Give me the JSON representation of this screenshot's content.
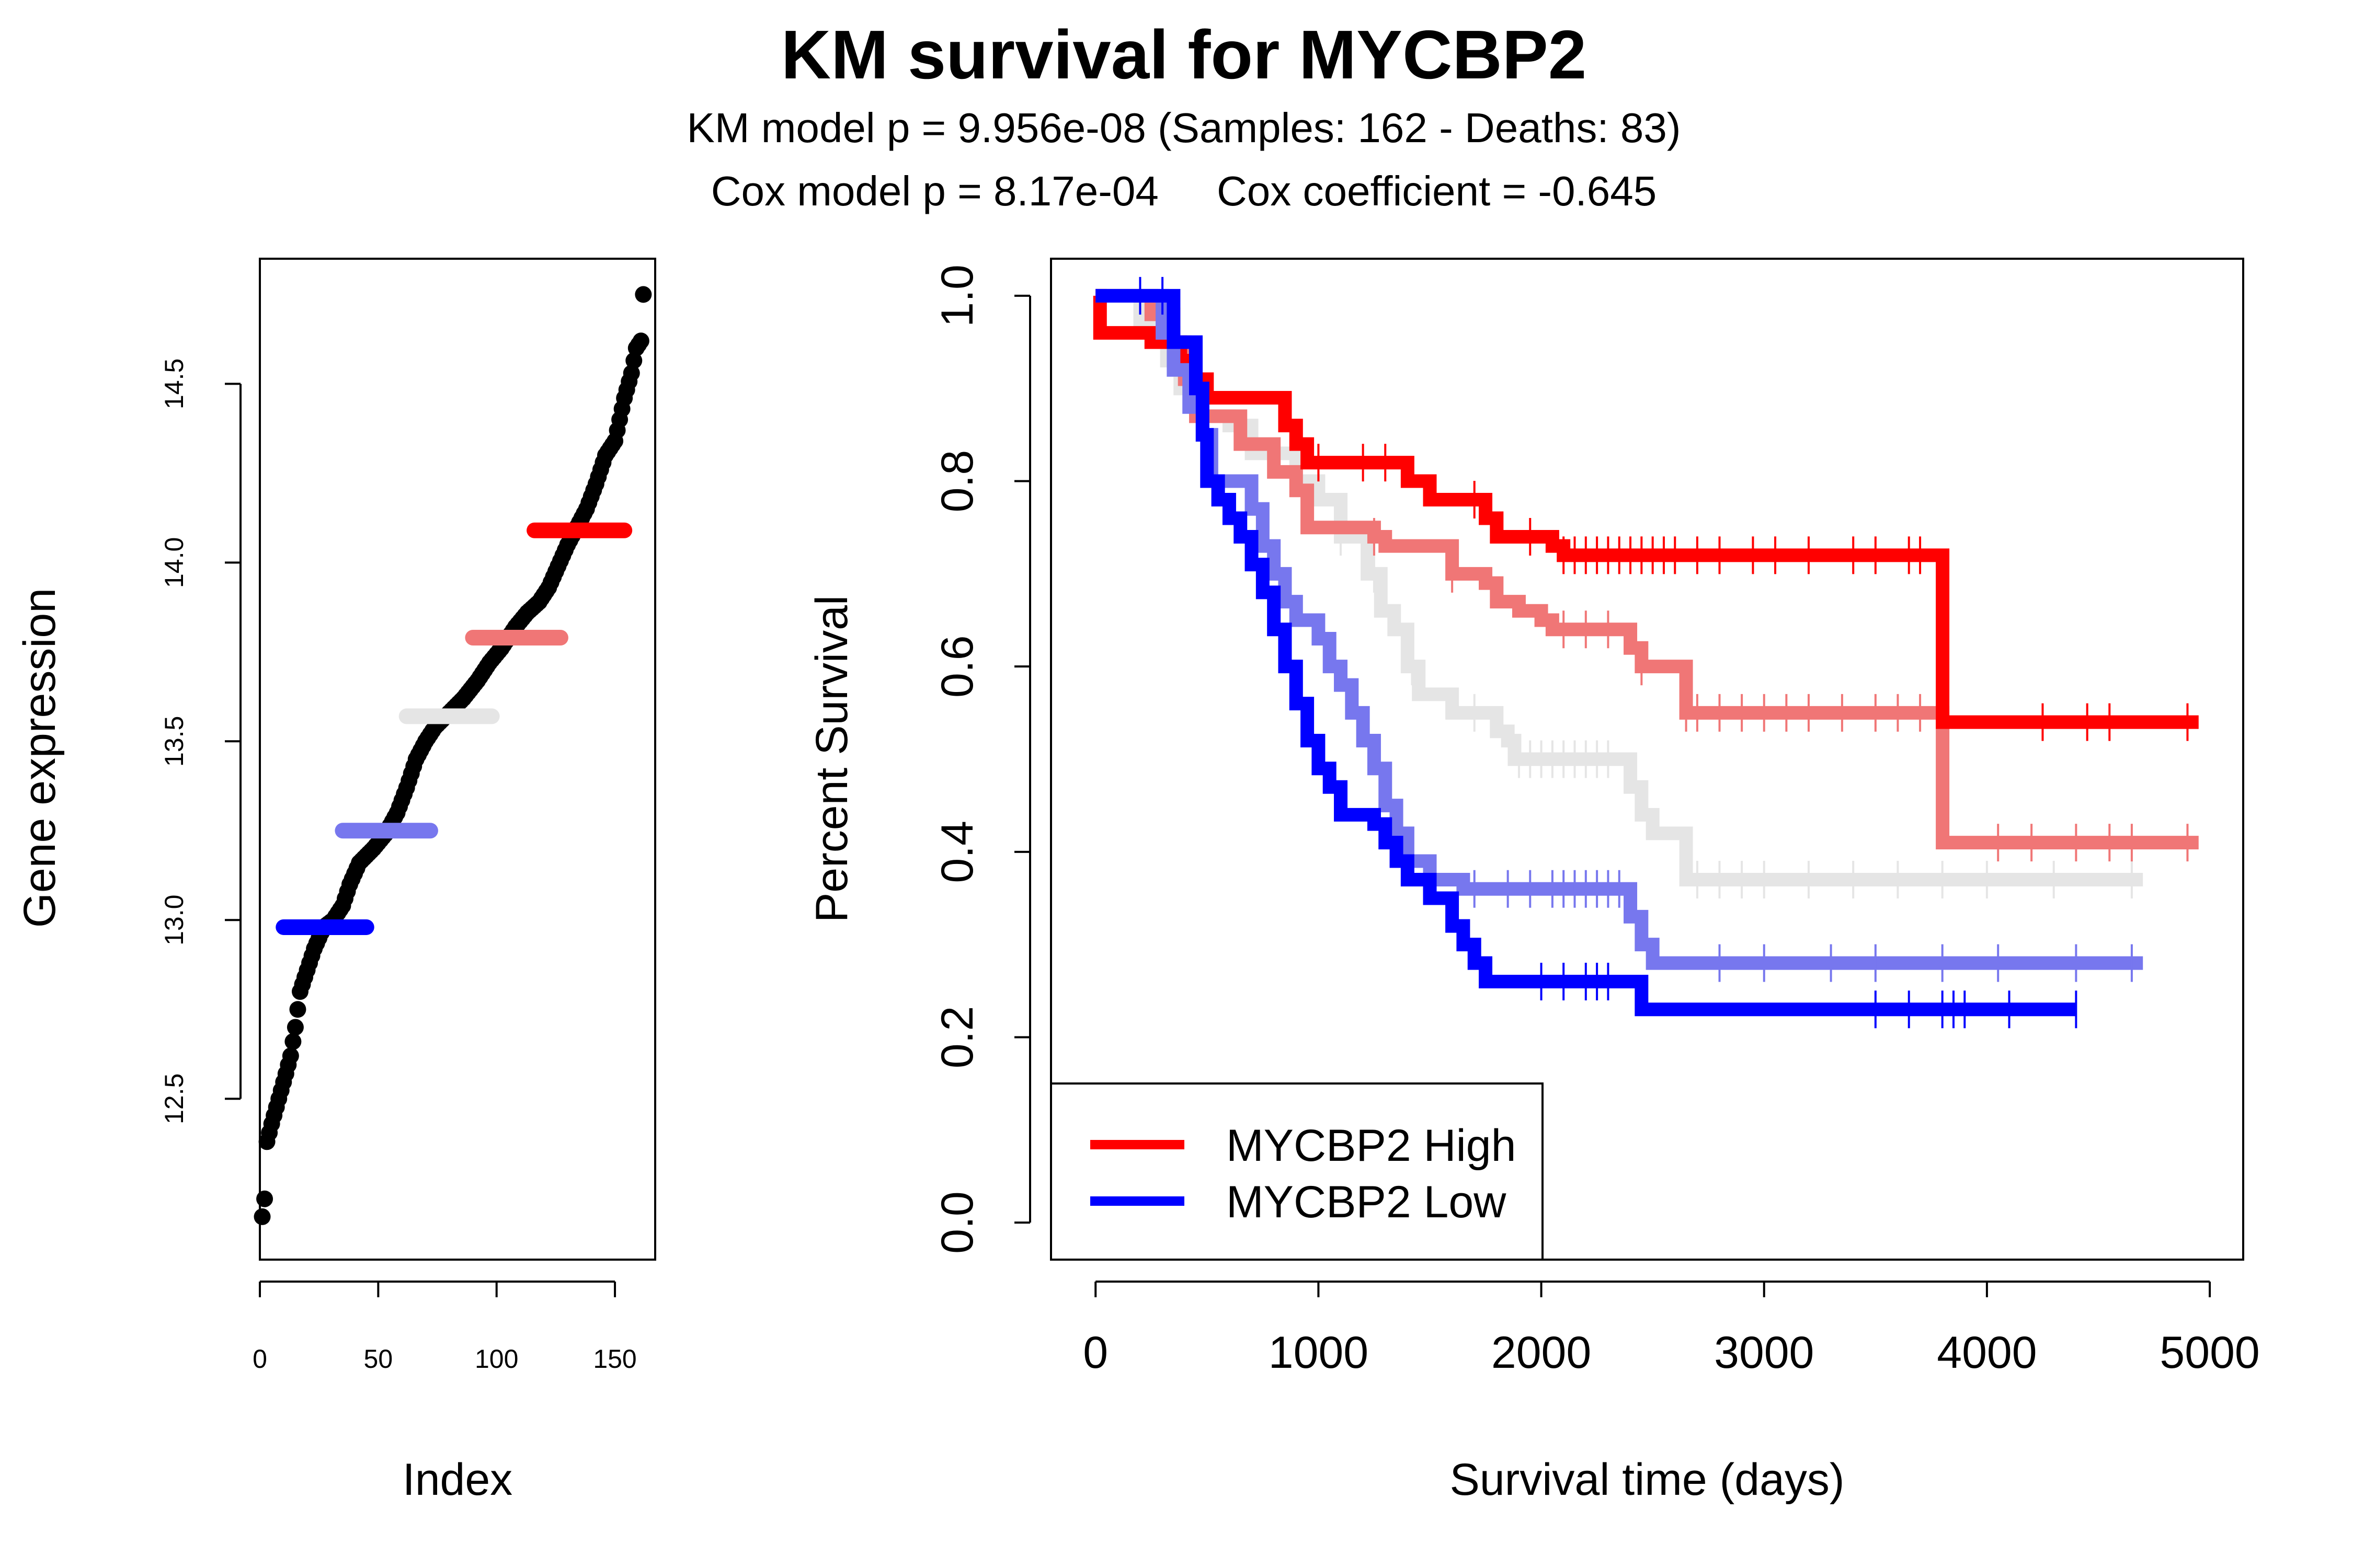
{
  "title": "KM survival for MYCBP2",
  "subtitle_line1": "KM model p = 9.956e-08 (Samples: 162 - Deaths: 83)",
  "subtitle_line2": "Cox model p = 8.17e-04     Cox coefficient = -0.645",
  "chart_data": [
    {
      "type": "scatter",
      "xlabel": "Index",
      "ylabel": "Gene expression",
      "xlim": [
        0,
        167
      ],
      "ylim": [
        12.05,
        14.85
      ],
      "x_ticks": [
        0,
        50,
        100,
        150
      ],
      "y_ticks": [
        12.5,
        13.0,
        13.5,
        14.0,
        14.5
      ],
      "grid": false,
      "n_points": 162,
      "value_curve": [
        [
          1,
          12.17
        ],
        [
          2,
          12.22
        ],
        [
          3,
          12.38
        ],
        [
          5,
          12.43
        ],
        [
          8,
          12.5
        ],
        [
          11,
          12.57
        ],
        [
          13,
          12.62
        ],
        [
          15,
          12.7
        ],
        [
          17,
          12.8
        ],
        [
          20,
          12.86
        ],
        [
          23,
          12.92
        ],
        [
          27,
          12.98
        ],
        [
          31,
          13.0
        ],
        [
          35,
          13.04
        ],
        [
          38,
          13.1
        ],
        [
          42,
          13.16
        ],
        [
          48,
          13.2
        ],
        [
          53,
          13.24
        ],
        [
          58,
          13.3
        ],
        [
          62,
          13.37
        ],
        [
          66,
          13.45
        ],
        [
          70,
          13.5
        ],
        [
          74,
          13.54
        ],
        [
          80,
          13.58
        ],
        [
          86,
          13.62
        ],
        [
          92,
          13.67
        ],
        [
          97,
          13.72
        ],
        [
          102,
          13.76
        ],
        [
          108,
          13.82
        ],
        [
          113,
          13.86
        ],
        [
          118,
          13.89
        ],
        [
          122,
          13.93
        ],
        [
          126,
          13.99
        ],
        [
          130,
          14.05
        ],
        [
          134,
          14.1
        ],
        [
          138,
          14.15
        ],
        [
          142,
          14.22
        ],
        [
          146,
          14.3
        ],
        [
          150,
          14.34
        ],
        [
          154,
          14.46
        ],
        [
          157,
          14.53
        ],
        [
          159,
          14.6
        ],
        [
          161,
          14.62
        ],
        [
          162,
          14.75
        ]
      ],
      "group_markers": [
        {
          "color": "#0000ff",
          "x_start": 10,
          "x_end": 45,
          "value": 12.98
        },
        {
          "color": "#7777ee",
          "x_start": 35,
          "x_end": 72,
          "value": 13.25
        },
        {
          "color": "#e5e5e5",
          "x_start": 62,
          "x_end": 98,
          "value": 13.57
        },
        {
          "color": "#f07676",
          "x_start": 90,
          "x_end": 127,
          "value": 13.79
        },
        {
          "color": "#ff0000",
          "x_start": 116,
          "x_end": 154,
          "value": 14.09
        }
      ]
    },
    {
      "type": "line",
      "subtype": "kaplan-meier",
      "xlabel": "Survival time (days)",
      "ylabel": "Percent Survival",
      "xlim": [
        -200,
        5150
      ],
      "ylim": [
        -0.04,
        1.04
      ],
      "x_ticks": [
        0,
        1000,
        2000,
        3000,
        4000,
        5000
      ],
      "y_ticks": [
        0.0,
        0.2,
        0.4,
        0.6,
        0.8,
        1.0
      ],
      "grid": false,
      "legend": {
        "position": "bottom-left",
        "entries": [
          {
            "label": "MYCBP2 High",
            "color": "#ff0000"
          },
          {
            "label": "MYCBP2 Low",
            "color": "#0000ff"
          }
        ]
      },
      "series": [
        {
          "color": "#e5e5e5",
          "steps": [
            [
              0,
              1.0
            ],
            [
              200,
              0.97
            ],
            [
              320,
              0.93
            ],
            [
              380,
              0.9
            ],
            [
              450,
              0.87
            ],
            [
              600,
              0.86
            ],
            [
              700,
              0.83
            ],
            [
              900,
              0.8
            ],
            [
              1000,
              0.78
            ],
            [
              1100,
              0.74
            ],
            [
              1220,
              0.7
            ],
            [
              1280,
              0.66
            ],
            [
              1340,
              0.64
            ],
            [
              1400,
              0.6
            ],
            [
              1450,
              0.57
            ],
            [
              1600,
              0.55
            ],
            [
              1800,
              0.53
            ],
            [
              1850,
              0.52
            ],
            [
              1880,
              0.5
            ],
            [
              2400,
              0.47
            ],
            [
              2450,
              0.44
            ],
            [
              2500,
              0.42
            ],
            [
              2650,
              0.37
            ],
            [
              4700,
              0.37
            ]
          ],
          "censor_days": [
            1100,
            1250,
            1420,
            1700,
            1900,
            1950,
            2000,
            2050,
            2100,
            2150,
            2200,
            2250,
            2300,
            2700,
            2800,
            2900,
            3000,
            3200,
            3400,
            3600,
            3800,
            4000,
            4300,
            4650
          ]
        },
        {
          "color": "#f07676",
          "steps": [
            [
              0,
              1.0
            ],
            [
              250,
              0.98
            ],
            [
              350,
              0.95
            ],
            [
              400,
              0.91
            ],
            [
              450,
              0.87
            ],
            [
              650,
              0.84
            ],
            [
              800,
              0.81
            ],
            [
              900,
              0.79
            ],
            [
              950,
              0.75
            ],
            [
              1250,
              0.74
            ],
            [
              1300,
              0.73
            ],
            [
              1600,
              0.7
            ],
            [
              1750,
              0.69
            ],
            [
              1800,
              0.67
            ],
            [
              1900,
              0.66
            ],
            [
              2000,
              0.65
            ],
            [
              2050,
              0.64
            ],
            [
              2400,
              0.62
            ],
            [
              2450,
              0.6
            ],
            [
              2650,
              0.55
            ],
            [
              3800,
              0.55
            ],
            [
              3801,
              0.41
            ],
            [
              4950,
              0.41
            ]
          ],
          "censor_days": [
            1250,
            1600,
            2100,
            2200,
            2300,
            2450,
            2650,
            2700,
            2800,
            2900,
            3000,
            3100,
            3200,
            3350,
            3500,
            3600,
            3700,
            4050,
            4200,
            4400,
            4550,
            4650,
            4900
          ]
        },
        {
          "color": "#ff0000",
          "steps": [
            [
              0,
              1.0
            ],
            [
              20,
              0.96
            ],
            [
              250,
              0.95
            ],
            [
              380,
              0.93
            ],
            [
              450,
              0.91
            ],
            [
              500,
              0.89
            ],
            [
              850,
              0.86
            ],
            [
              900,
              0.84
            ],
            [
              950,
              0.82
            ],
            [
              1400,
              0.8
            ],
            [
              1500,
              0.78
            ],
            [
              1750,
              0.76
            ],
            [
              1800,
              0.74
            ],
            [
              2050,
              0.73
            ],
            [
              2100,
              0.72
            ],
            [
              3800,
              0.72
            ],
            [
              3801,
              0.54
            ],
            [
              4950,
              0.54
            ]
          ],
          "censor_days": [
            1000,
            1200,
            1300,
            1700,
            1950,
            2100,
            2150,
            2200,
            2250,
            2300,
            2350,
            2400,
            2450,
            2500,
            2550,
            2600,
            2700,
            2800,
            2950,
            3050,
            3200,
            3400,
            3500,
            3650,
            3700,
            4250,
            4450,
            4550,
            4900
          ]
        },
        {
          "color": "#7777ee",
          "steps": [
            [
              0,
              1.0
            ],
            [
              300,
              0.96
            ],
            [
              350,
              0.92
            ],
            [
              420,
              0.88
            ],
            [
              480,
              0.85
            ],
            [
              520,
              0.8
            ],
            [
              700,
              0.77
            ],
            [
              750,
              0.73
            ],
            [
              800,
              0.7
            ],
            [
              850,
              0.67
            ],
            [
              900,
              0.65
            ],
            [
              1000,
              0.63
            ],
            [
              1050,
              0.6
            ],
            [
              1100,
              0.58
            ],
            [
              1150,
              0.55
            ],
            [
              1200,
              0.52
            ],
            [
              1250,
              0.49
            ],
            [
              1300,
              0.45
            ],
            [
              1350,
              0.42
            ],
            [
              1400,
              0.39
            ],
            [
              1500,
              0.37
            ],
            [
              1650,
              0.36
            ],
            [
              2400,
              0.33
            ],
            [
              2450,
              0.3
            ],
            [
              2500,
              0.28
            ],
            [
              4700,
              0.28
            ]
          ],
          "censor_days": [
            1700,
            1850,
            1950,
            2050,
            2100,
            2150,
            2200,
            2250,
            2300,
            2350,
            2800,
            3000,
            3300,
            3500,
            3800,
            4050,
            4400,
            4650
          ]
        },
        {
          "color": "#0000ff",
          "steps": [
            [
              0,
              1.0
            ],
            [
              350,
              0.95
            ],
            [
              450,
              0.9
            ],
            [
              480,
              0.85
            ],
            [
              500,
              0.8
            ],
            [
              550,
              0.78
            ],
            [
              600,
              0.76
            ],
            [
              650,
              0.74
            ],
            [
              700,
              0.71
            ],
            [
              750,
              0.68
            ],
            [
              800,
              0.64
            ],
            [
              850,
              0.6
            ],
            [
              900,
              0.56
            ],
            [
              950,
              0.52
            ],
            [
              1000,
              0.49
            ],
            [
              1050,
              0.47
            ],
            [
              1100,
              0.44
            ],
            [
              1250,
              0.43
            ],
            [
              1300,
              0.41
            ],
            [
              1350,
              0.39
            ],
            [
              1400,
              0.37
            ],
            [
              1500,
              0.35
            ],
            [
              1600,
              0.32
            ],
            [
              1650,
              0.3
            ],
            [
              1700,
              0.28
            ],
            [
              1750,
              0.26
            ],
            [
              2450,
              0.23
            ],
            [
              4400,
              0.23
            ]
          ],
          "censor_days": [
            200,
            300,
            2000,
            2100,
            2200,
            2250,
            2300,
            3500,
            3650,
            3800,
            3850,
            3900,
            4100,
            4400
          ]
        }
      ]
    }
  ]
}
